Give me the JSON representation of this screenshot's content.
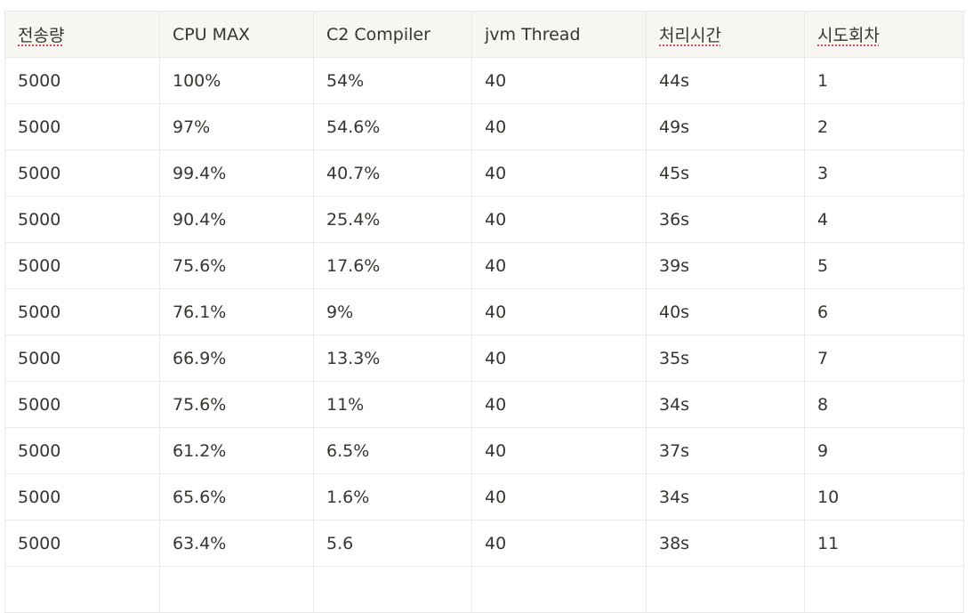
{
  "table": {
    "header": [
      "전송량",
      "CPU MAX",
      "C2 Compiler",
      "jvm Thread",
      "처리시간",
      "시도회차"
    ],
    "rows": [
      [
        "5000",
        "100%",
        "54%",
        "40",
        "44s",
        "1"
      ],
      [
        "5000",
        "97%",
        "54.6%",
        "40",
        "49s",
        "2"
      ],
      [
        "5000",
        "99.4%",
        "40.7%",
        "40",
        "45s",
        "3"
      ],
      [
        "5000",
        "90.4%",
        "25.4%",
        "40",
        "36s",
        "4"
      ],
      [
        "5000",
        "75.6%",
        "17.6%",
        "40",
        "39s",
        "5"
      ],
      [
        "5000",
        "76.1%",
        "9%",
        "40",
        "40s",
        "6"
      ],
      [
        "5000",
        "66.9%",
        "13.3%",
        "40",
        "35s",
        "7"
      ],
      [
        "5000",
        "75.6%",
        "11%",
        "40",
        "34s",
        "8"
      ],
      [
        "5000",
        "61.2%",
        "6.5%",
        "40",
        "37s",
        "9"
      ],
      [
        "5000",
        "65.6%",
        "1.6%",
        "40",
        "34s",
        "10"
      ],
      [
        "5000",
        "63.4%",
        "5.6",
        "40",
        "38s",
        "11"
      ]
    ]
  }
}
